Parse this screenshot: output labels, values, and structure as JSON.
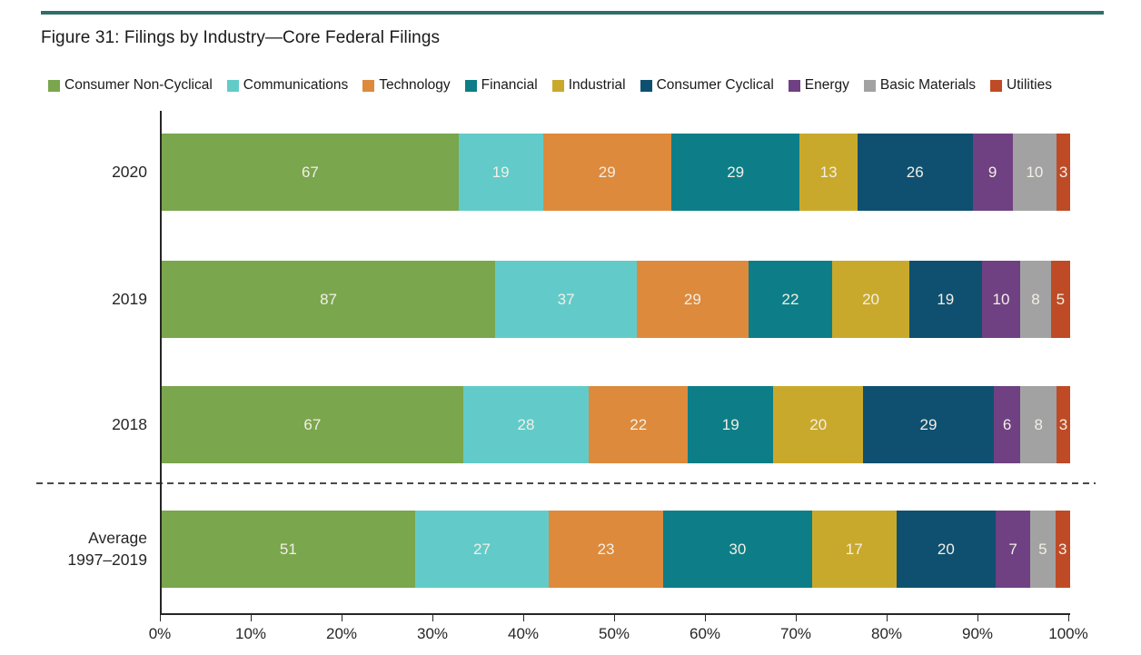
{
  "page": {
    "title": "Figure 31: Filings by Industry—Core Federal Filings"
  },
  "colors": {
    "top_rule": "#2F6E68",
    "axis": "#262626",
    "separator": "#4A4A4A",
    "segment_label": "#F2EFE5"
  },
  "chart_data": {
    "type": "bar",
    "stacked": true,
    "orientation": "horizontal",
    "normalized_to_100_percent": true,
    "title": "Figure 31: Filings by Industry—Core Federal Filings",
    "legend_position": "top",
    "grid": false,
    "categories": [
      "2020",
      "2019",
      "2018",
      "Average\n1997–2019"
    ],
    "series": [
      {
        "name": "Consumer Non-Cyclical",
        "color": "#7AA64D",
        "values": [
          67,
          87,
          67,
          51
        ]
      },
      {
        "name": "Communications",
        "color": "#62CBC9",
        "values": [
          19,
          37,
          28,
          27
        ]
      },
      {
        "name": "Technology",
        "color": "#DD8A3D",
        "values": [
          29,
          29,
          22,
          23
        ]
      },
      {
        "name": "Financial",
        "color": "#0D7E87",
        "values": [
          29,
          22,
          19,
          30
        ]
      },
      {
        "name": "Industrial",
        "color": "#C9A92C",
        "values": [
          13,
          20,
          20,
          17
        ]
      },
      {
        "name": "Consumer Cyclical",
        "color": "#0F5070",
        "values": [
          26,
          19,
          29,
          20
        ]
      },
      {
        "name": "Energy",
        "color": "#6F4182",
        "values": [
          9,
          10,
          6,
          7
        ]
      },
      {
        "name": "Basic Materials",
        "color": "#A2A2A2",
        "values": [
          10,
          8,
          8,
          5
        ]
      },
      {
        "name": "Utilities",
        "color": "#BE4B26",
        "values": [
          3,
          5,
          3,
          3
        ]
      }
    ],
    "x_axis": {
      "tick_labels": [
        "0%",
        "10%",
        "20%",
        "30%",
        "40%",
        "50%",
        "60%",
        "70%",
        "80%",
        "90%",
        "100%"
      ],
      "range": [
        0,
        100
      ]
    },
    "separator_after_category_index": 2
  }
}
